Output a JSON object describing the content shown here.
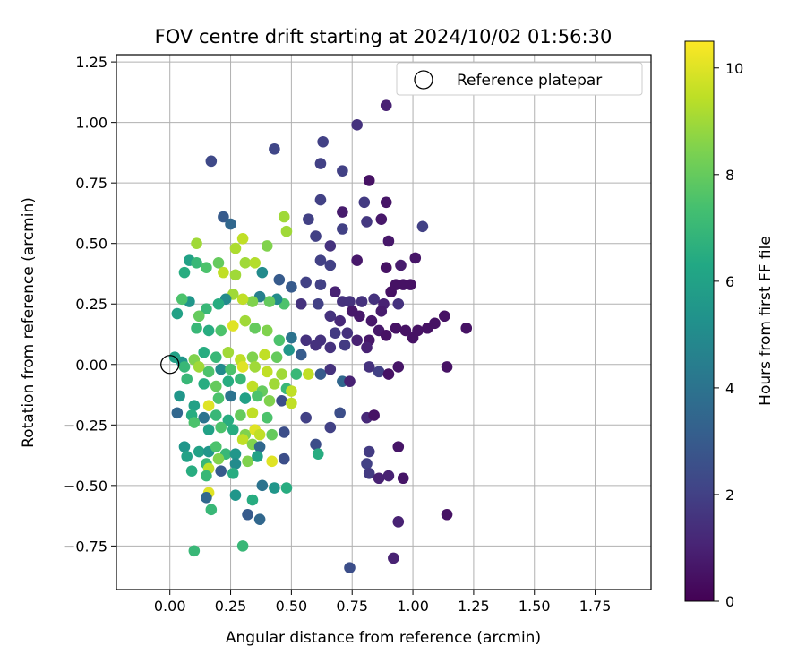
{
  "chart_data": {
    "type": "scatter",
    "title": "FOV centre drift starting at 2024/10/02 01:56:30",
    "xlabel": "Angular distance from reference (arcmin)",
    "ylabel": "Rotation from reference (arcmin)",
    "xlim": [
      -0.22,
      1.98
    ],
    "ylim": [
      -0.93,
      1.28
    ],
    "xticks": [
      "0.00",
      "0.25",
      "0.50",
      "0.75",
      "1.00",
      "1.25",
      "1.50",
      "1.75"
    ],
    "yticks": [
      "-0.75",
      "-0.50",
      "-0.25",
      "0.00",
      "0.25",
      "0.50",
      "0.75",
      "1.00",
      "1.25"
    ],
    "grid": true,
    "legend": {
      "placement": "top-right",
      "entries": [
        "Reference platepar"
      ]
    },
    "reference_point": {
      "x": 0.0,
      "y": 0.0
    },
    "colorbar": {
      "label": "Hours from first FF file",
      "colormap": "viridis",
      "min": 0,
      "max": 10.5,
      "ticks": [
        "0",
        "2",
        "4",
        "6",
        "8",
        "10"
      ]
    },
    "points": [
      [
        0.89,
        1.07,
        1.0
      ],
      [
        0.77,
        0.99,
        1.5
      ],
      [
        0.63,
        0.92,
        2.0
      ],
      [
        0.43,
        0.89,
        2.2
      ],
      [
        0.17,
        0.84,
        2.3
      ],
      [
        0.62,
        0.83,
        2.0
      ],
      [
        0.71,
        0.8,
        2.0
      ],
      [
        0.82,
        0.76,
        0.5
      ],
      [
        0.62,
        0.68,
        2.0
      ],
      [
        0.8,
        0.67,
        1.8
      ],
      [
        0.89,
        0.67,
        0.6
      ],
      [
        0.71,
        0.63,
        0.8
      ],
      [
        0.22,
        0.61,
        3.0
      ],
      [
        0.57,
        0.6,
        2.0
      ],
      [
        0.81,
        0.59,
        1.7
      ],
      [
        0.87,
        0.6,
        0.7
      ],
      [
        1.04,
        0.57,
        2.0
      ],
      [
        0.25,
        0.58,
        3.5
      ],
      [
        0.71,
        0.56,
        2.0
      ],
      [
        0.6,
        0.53,
        2.0
      ],
      [
        0.9,
        0.51,
        0.7
      ],
      [
        0.47,
        0.61,
        9.0
      ],
      [
        0.48,
        0.55,
        9.0
      ],
      [
        0.3,
        0.52,
        9.5
      ],
      [
        0.11,
        0.5,
        9.0
      ],
      [
        0.66,
        0.49,
        1.5
      ],
      [
        0.27,
        0.48,
        9.2
      ],
      [
        0.4,
        0.49,
        8.5
      ],
      [
        0.89,
        0.4,
        0.5
      ],
      [
        0.95,
        0.41,
        0.8
      ],
      [
        1.01,
        0.44,
        0.6
      ],
      [
        0.77,
        0.43,
        0.7
      ],
      [
        0.62,
        0.43,
        2.0
      ],
      [
        0.66,
        0.41,
        2.0
      ],
      [
        0.08,
        0.43,
        6.0
      ],
      [
        0.11,
        0.42,
        7.0
      ],
      [
        0.2,
        0.42,
        8.0
      ],
      [
        0.31,
        0.42,
        9.0
      ],
      [
        0.35,
        0.42,
        9.3
      ],
      [
        0.38,
        0.38,
        5.0
      ],
      [
        0.45,
        0.35,
        3.0
      ],
      [
        0.5,
        0.32,
        3.0
      ],
      [
        0.06,
        0.38,
        6.5
      ],
      [
        0.15,
        0.4,
        7.5
      ],
      [
        0.22,
        0.38,
        9.5
      ],
      [
        0.27,
        0.37,
        9.0
      ],
      [
        0.56,
        0.34,
        2.0
      ],
      [
        0.62,
        0.33,
        2.0
      ],
      [
        0.68,
        0.3,
        1.0
      ],
      [
        0.71,
        0.26,
        1.5
      ],
      [
        0.74,
        0.26,
        1.5
      ],
      [
        0.79,
        0.26,
        1.5
      ],
      [
        0.84,
        0.27,
        1.5
      ],
      [
        0.88,
        0.25,
        1.0
      ],
      [
        0.91,
        0.3,
        0.5
      ],
      [
        0.93,
        0.33,
        0.5
      ],
      [
        0.96,
        0.33,
        0.5
      ],
      [
        0.99,
        0.33,
        0.5
      ],
      [
        0.94,
        0.25,
        1.5
      ],
      [
        0.87,
        0.22,
        0.8
      ],
      [
        0.83,
        0.18,
        0.7
      ],
      [
        0.78,
        0.2,
        0.7
      ],
      [
        0.75,
        0.22,
        0.7
      ],
      [
        0.7,
        0.18,
        1.2
      ],
      [
        0.66,
        0.2,
        1.5
      ],
      [
        0.61,
        0.25,
        2.0
      ],
      [
        0.54,
        0.25,
        1.5
      ],
      [
        0.47,
        0.25,
        7.5
      ],
      [
        0.44,
        0.27,
        5.0
      ],
      [
        0.41,
        0.26,
        8.0
      ],
      [
        0.37,
        0.28,
        4.5
      ],
      [
        0.34,
        0.26,
        8.5
      ],
      [
        0.3,
        0.27,
        9.5
      ],
      [
        0.26,
        0.29,
        9.0
      ],
      [
        0.23,
        0.27,
        5.0
      ],
      [
        0.2,
        0.25,
        6.5
      ],
      [
        0.15,
        0.23,
        7.0
      ],
      [
        0.12,
        0.2,
        8.0
      ],
      [
        0.08,
        0.26,
        5.5
      ],
      [
        0.05,
        0.27,
        7.5
      ],
      [
        0.03,
        0.21,
        6.0
      ],
      [
        0.11,
        0.15,
        7.0
      ],
      [
        0.16,
        0.14,
        6.5
      ],
      [
        0.21,
        0.14,
        7.5
      ],
      [
        0.26,
        0.16,
        10.0
      ],
      [
        0.31,
        0.18,
        9.0
      ],
      [
        0.35,
        0.15,
        8.0
      ],
      [
        0.4,
        0.14,
        8.5
      ],
      [
        0.45,
        0.1,
        7.5
      ],
      [
        0.5,
        0.11,
        4.0
      ],
      [
        0.56,
        0.1,
        1.5
      ],
      [
        0.62,
        0.1,
        1.5
      ],
      [
        0.68,
        0.13,
        1.8
      ],
      [
        0.73,
        0.13,
        1.5
      ],
      [
        0.77,
        0.1,
        1.0
      ],
      [
        0.82,
        0.1,
        0.7
      ],
      [
        0.86,
        0.14,
        0.7
      ],
      [
        0.89,
        0.12,
        0.5
      ],
      [
        0.93,
        0.15,
        0.5
      ],
      [
        0.97,
        0.14,
        0.5
      ],
      [
        1.02,
        0.14,
        0.5
      ],
      [
        1.06,
        0.15,
        0.5
      ],
      [
        1.09,
        0.17,
        0.5
      ],
      [
        1.13,
        0.2,
        0.5
      ],
      [
        1.22,
        0.15,
        0.5
      ],
      [
        1.0,
        0.11,
        0.5
      ],
      [
        0.81,
        0.07,
        1.0
      ],
      [
        0.72,
        0.08,
        1.8
      ],
      [
        0.66,
        0.07,
        1.5
      ],
      [
        0.6,
        0.08,
        1.5
      ],
      [
        0.54,
        0.04,
        3.0
      ],
      [
        0.49,
        0.06,
        5.5
      ],
      [
        0.44,
        0.03,
        8.0
      ],
      [
        0.39,
        0.04,
        9.5
      ],
      [
        0.34,
        0.03,
        8.5
      ],
      [
        0.29,
        0.02,
        9.5
      ],
      [
        0.24,
        0.05,
        9.0
      ],
      [
        0.19,
        0.03,
        7.0
      ],
      [
        0.14,
        0.05,
        6.5
      ],
      [
        0.1,
        0.02,
        8.5
      ],
      [
        0.05,
        0.01,
        5.5
      ],
      [
        0.02,
        0.03,
        6.0
      ],
      [
        0.06,
        -0.01,
        7.0
      ],
      [
        0.12,
        -0.01,
        9.0
      ],
      [
        0.16,
        -0.03,
        7.5
      ],
      [
        0.21,
        -0.02,
        5.0
      ],
      [
        0.25,
        -0.02,
        7.5
      ],
      [
        0.3,
        -0.01,
        10.0
      ],
      [
        0.35,
        -0.01,
        9.0
      ],
      [
        0.4,
        -0.03,
        9.5
      ],
      [
        0.46,
        -0.04,
        9.0
      ],
      [
        0.52,
        -0.04,
        7.0
      ],
      [
        0.57,
        -0.04,
        9.5
      ],
      [
        0.62,
        -0.04,
        3.0
      ],
      [
        0.66,
        -0.02,
        1.5
      ],
      [
        0.71,
        -0.07,
        3.5
      ],
      [
        0.74,
        -0.07,
        1.0
      ],
      [
        0.82,
        -0.01,
        1.5
      ],
      [
        0.86,
        -0.03,
        2.0
      ],
      [
        0.9,
        -0.04,
        0.5
      ],
      [
        0.94,
        -0.01,
        0.6
      ],
      [
        1.14,
        -0.01,
        0.5
      ],
      [
        0.07,
        -0.06,
        7.0
      ],
      [
        0.14,
        -0.08,
        6.5
      ],
      [
        0.19,
        -0.09,
        8.0
      ],
      [
        0.24,
        -0.07,
        6.5
      ],
      [
        0.29,
        -0.06,
        7.0
      ],
      [
        0.34,
        -0.09,
        9.5
      ],
      [
        0.38,
        -0.11,
        8.0
      ],
      [
        0.43,
        -0.08,
        9.0
      ],
      [
        0.48,
        -0.1,
        7.0
      ],
      [
        0.5,
        -0.11,
        9.5
      ],
      [
        0.04,
        -0.13,
        5.5
      ],
      [
        0.1,
        -0.17,
        6.0
      ],
      [
        0.16,
        -0.17,
        10.0
      ],
      [
        0.2,
        -0.14,
        7.5
      ],
      [
        0.25,
        -0.13,
        4.0
      ],
      [
        0.31,
        -0.14,
        6.0
      ],
      [
        0.36,
        -0.13,
        7.5
      ],
      [
        0.41,
        -0.15,
        8.5
      ],
      [
        0.46,
        -0.15,
        2.5
      ],
      [
        0.5,
        -0.16,
        9.5
      ],
      [
        0.03,
        -0.2,
        3.5
      ],
      [
        0.09,
        -0.21,
        6.5
      ],
      [
        0.14,
        -0.22,
        4.0
      ],
      [
        0.19,
        -0.21,
        7.0
      ],
      [
        0.24,
        -0.23,
        6.5
      ],
      [
        0.29,
        -0.21,
        8.0
      ],
      [
        0.34,
        -0.2,
        9.5
      ],
      [
        0.4,
        -0.22,
        7.5
      ],
      [
        0.56,
        -0.22,
        2.0
      ],
      [
        0.66,
        -0.26,
        2.0
      ],
      [
        0.7,
        -0.2,
        2.5
      ],
      [
        0.81,
        -0.22,
        1.2
      ],
      [
        0.84,
        -0.21,
        0.5
      ],
      [
        0.1,
        -0.24,
        7.5
      ],
      [
        0.16,
        -0.27,
        6.0
      ],
      [
        0.21,
        -0.26,
        7.5
      ],
      [
        0.26,
        -0.27,
        6.5
      ],
      [
        0.31,
        -0.29,
        8.5
      ],
      [
        0.35,
        -0.27,
        10.0
      ],
      [
        0.37,
        -0.29,
        9.5
      ],
      [
        0.42,
        -0.29,
        8.0
      ],
      [
        0.47,
        -0.28,
        2.5
      ],
      [
        0.06,
        -0.34,
        5.5
      ],
      [
        0.12,
        -0.36,
        6.0
      ],
      [
        0.16,
        -0.36,
        5.5
      ],
      [
        0.19,
        -0.34,
        7.5
      ],
      [
        0.23,
        -0.37,
        7.0
      ],
      [
        0.27,
        -0.37,
        5.5
      ],
      [
        0.3,
        -0.31,
        9.5
      ],
      [
        0.34,
        -0.33,
        8.5
      ],
      [
        0.37,
        -0.34,
        3.5
      ],
      [
        0.6,
        -0.33,
        2.5
      ],
      [
        0.82,
        -0.36,
        1.8
      ],
      [
        0.94,
        -0.34,
        0.6
      ],
      [
        0.07,
        -0.38,
        6.0
      ],
      [
        0.15,
        -0.41,
        7.0
      ],
      [
        0.2,
        -0.39,
        8.5
      ],
      [
        0.27,
        -0.41,
        5.0
      ],
      [
        0.32,
        -0.4,
        8.5
      ],
      [
        0.36,
        -0.38,
        6.0
      ],
      [
        0.42,
        -0.4,
        10.0
      ],
      [
        0.47,
        -0.39,
        2.5
      ],
      [
        0.61,
        -0.37,
        6.5
      ],
      [
        0.81,
        -0.41,
        2.0
      ],
      [
        0.09,
        -0.44,
        6.5
      ],
      [
        0.16,
        -0.43,
        9.5
      ],
      [
        0.21,
        -0.44,
        3.0
      ],
      [
        0.26,
        -0.45,
        6.5
      ],
      [
        0.82,
        -0.45,
        1.8
      ],
      [
        0.86,
        -0.47,
        1.0
      ],
      [
        0.9,
        -0.46,
        1.0
      ],
      [
        0.96,
        -0.47,
        0.6
      ],
      [
        0.15,
        -0.46,
        7.0
      ],
      [
        0.38,
        -0.5,
        4.0
      ],
      [
        0.43,
        -0.51,
        5.5
      ],
      [
        0.48,
        -0.51,
        6.5
      ],
      [
        0.27,
        -0.54,
        5.5
      ],
      [
        0.16,
        -0.53,
        10.0
      ],
      [
        0.15,
        -0.55,
        3.5
      ],
      [
        0.34,
        -0.56,
        6.5
      ],
      [
        0.17,
        -0.6,
        7.0
      ],
      [
        0.32,
        -0.62,
        3.0
      ],
      [
        0.37,
        -0.64,
        3.5
      ],
      [
        0.94,
        -0.65,
        1.0
      ],
      [
        1.14,
        -0.62,
        0.5
      ],
      [
        0.3,
        -0.75,
        7.0
      ],
      [
        0.1,
        -0.77,
        7.0
      ],
      [
        0.92,
        -0.8,
        1.0
      ],
      [
        0.74,
        -0.84,
        2.5
      ]
    ]
  }
}
